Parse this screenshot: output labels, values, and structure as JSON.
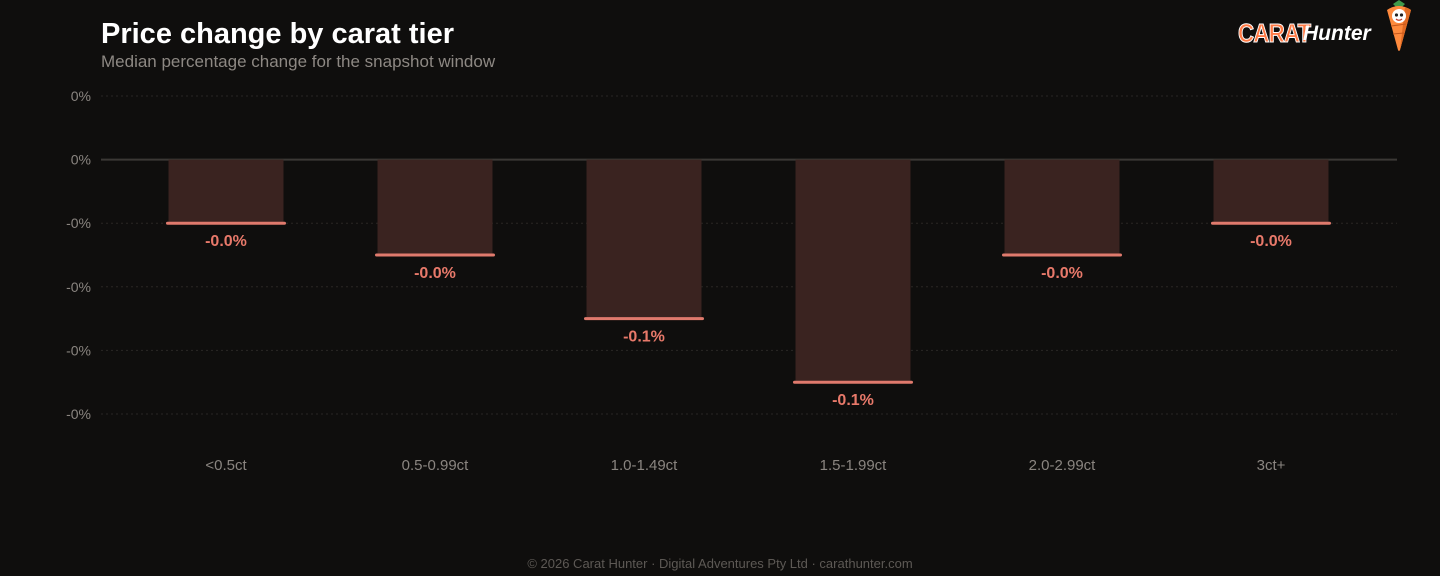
{
  "header": {
    "title": "Price change by carat tier",
    "subtitle": "Median percentage change for the snapshot window"
  },
  "brand": {
    "carat": "CARAT",
    "hunter": "Hunter",
    "mascot_icon": "carrot-mascot-icon"
  },
  "chart_data": {
    "type": "bar",
    "categories": [
      "<0.5ct",
      "0.5-0.99ct",
      "1.0-1.49ct",
      "1.5-1.99ct",
      "2.0-2.99ct",
      "3ct+"
    ],
    "values": [
      -0.02,
      -0.03,
      -0.05,
      -0.07,
      -0.03,
      -0.02
    ],
    "data_labels": [
      "-0.0%",
      "-0.0%",
      "-0.1%",
      "-0.1%",
      "-0.0%",
      "-0.0%"
    ],
    "y_ticks": [
      0.02,
      0,
      -0.02,
      -0.04,
      -0.06,
      -0.08
    ],
    "y_tick_labels": [
      "0%",
      "0%",
      "-0%",
      "-0%",
      "-0%",
      "-0%"
    ],
    "ylim": [
      -0.08,
      0.02
    ],
    "grid": true,
    "bar_fill_color": "#3a2320",
    "bar_edge_color": "#e07a6d",
    "label_color": "#e8796a"
  },
  "footer": {
    "text": "© 2026 Carat Hunter · Digital Adventures Pty Ltd · carathunter.com"
  }
}
